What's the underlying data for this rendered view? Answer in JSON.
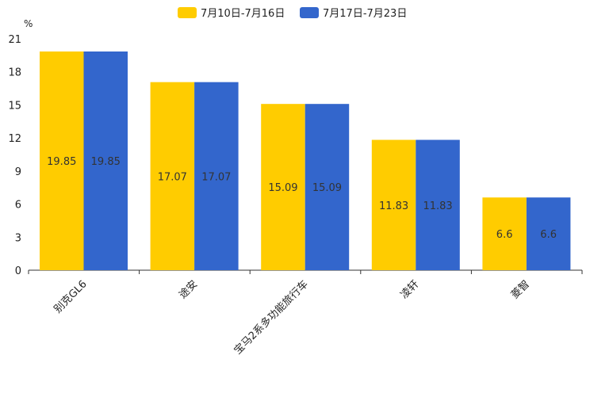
{
  "chart_data": {
    "type": "bar",
    "ylabel": "%",
    "ylim": [
      0,
      21
    ],
    "yticks": [
      0,
      3,
      6,
      9,
      12,
      15,
      18,
      21
    ],
    "categories": [
      "别克GL6",
      "途安",
      "宝马2系多功能旅行车",
      "凌轩",
      "菱智"
    ],
    "series": [
      {
        "name": "7月10日-7月16日",
        "color": "#FFCC00",
        "values": [
          19.85,
          17.07,
          15.09,
          11.83,
          6.6
        ]
      },
      {
        "name": "7月17日-7月23日",
        "color": "#3366CC",
        "values": [
          19.85,
          17.07,
          15.09,
          11.83,
          6.6
        ]
      }
    ],
    "legend": "top-center",
    "grid": false
  }
}
